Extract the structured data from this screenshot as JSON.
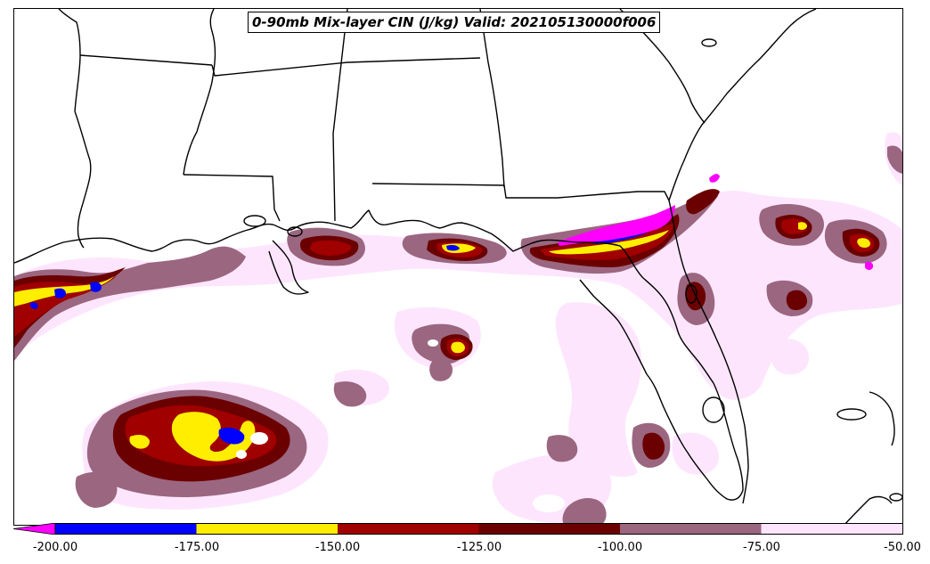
{
  "title": "0-90mb Mix-layer CIN (J/kg) Valid: 202105130000f006",
  "colorbar": {
    "ticks": [
      "-200.00",
      "-175.00",
      "-150.00",
      "-125.00",
      "-100.00",
      "-75.00",
      "-50.00"
    ],
    "colors": {
      "below_-200": "#ff00ff",
      "-200_to_-175": "#0000ff",
      "-175_to_-150": "#ffee00",
      "-150_to_-125": "#a00000",
      "-125_to_-100": "#6b0000",
      "-100_to_-75": "#9b6680",
      "-75_to_-50": "#fde6fd"
    },
    "extend": "min"
  }
}
